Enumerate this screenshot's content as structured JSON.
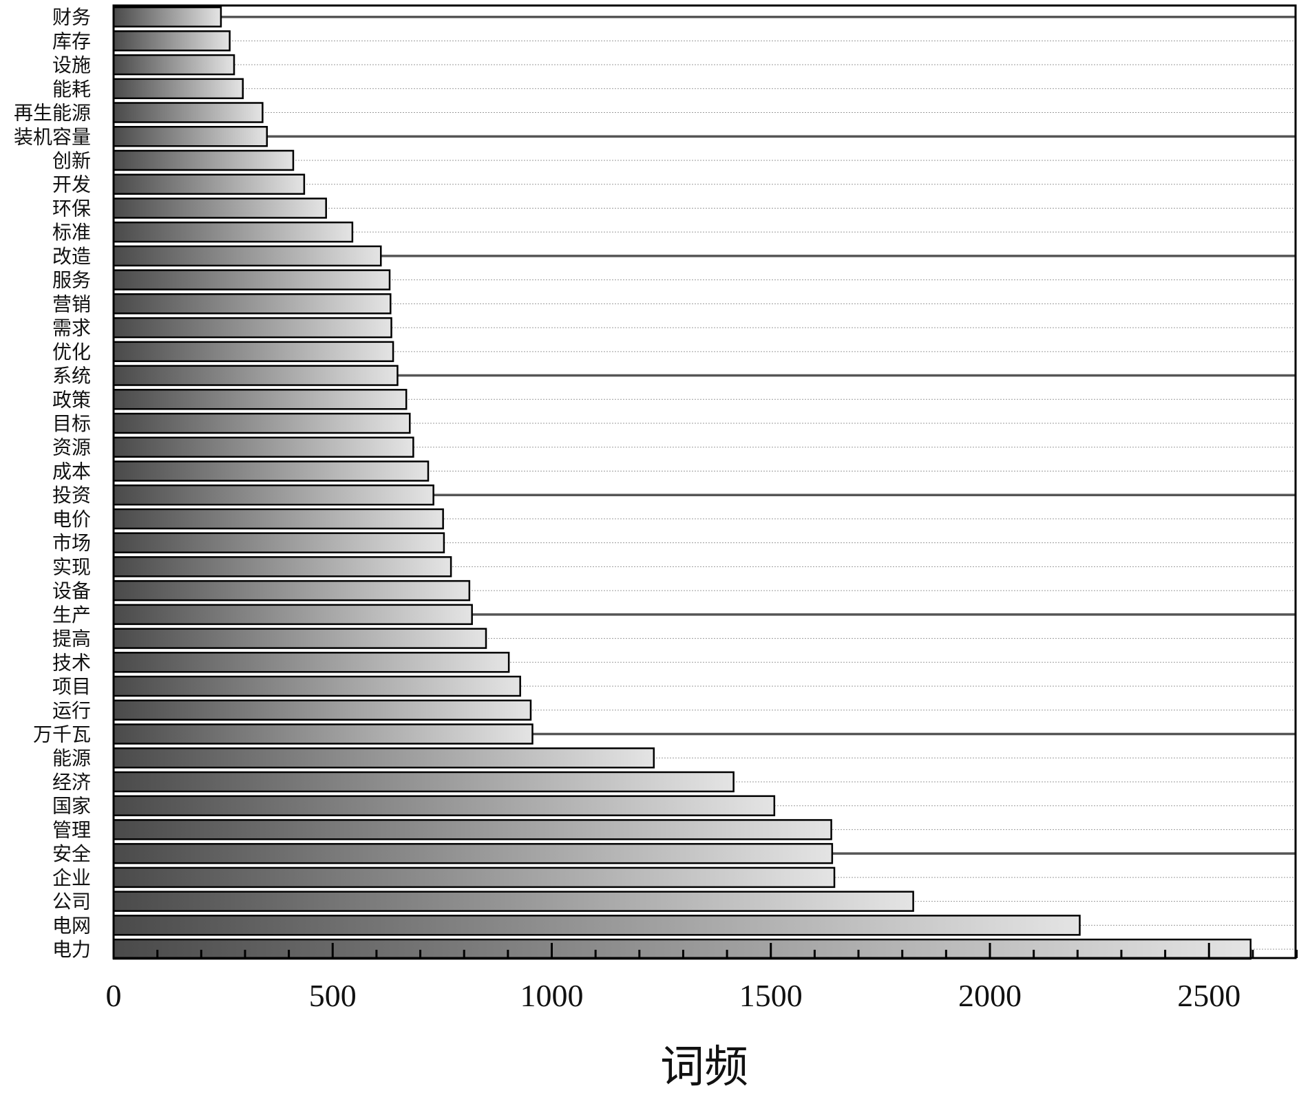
{
  "chart_data": {
    "type": "bar",
    "orientation": "horizontal",
    "title": "",
    "xlabel": "词频",
    "ylabel": "",
    "xlim": [
      0,
      2700
    ],
    "xticks": [
      0,
      500,
      1000,
      1500,
      2000,
      2500
    ],
    "grid": true,
    "categories": [
      "财务",
      "库存",
      "设施",
      "能耗",
      "再生能源",
      "装机容量",
      "创新",
      "开发",
      "环保",
      "标准",
      "改造",
      "服务",
      "营销",
      "需求",
      "优化",
      "系统",
      "政策",
      "目标",
      "资源",
      "成本",
      "投资",
      "电价",
      "市场",
      "实现",
      "设备",
      "生产",
      "提高",
      "技术",
      "项目",
      "运行",
      "万千瓦",
      "能源",
      "经济",
      "国家",
      "管理",
      "安全",
      "企业",
      "公司",
      "电网",
      "电力"
    ],
    "values": [
      245,
      265,
      275,
      295,
      340,
      350,
      410,
      435,
      485,
      545,
      610,
      630,
      632,
      634,
      638,
      648,
      668,
      676,
      684,
      718,
      730,
      752,
      754,
      770,
      812,
      818,
      850,
      902,
      928,
      952,
      956,
      1233,
      1415,
      1508,
      1638,
      1640,
      1645,
      1825,
      2205,
      2595
    ],
    "colors": {
      "bar_dark": "#4a4a4a",
      "bar_light": "#e2e2e2",
      "axis": "#000000",
      "grid_major": "#555555",
      "grid_minor": "#999999"
    }
  }
}
